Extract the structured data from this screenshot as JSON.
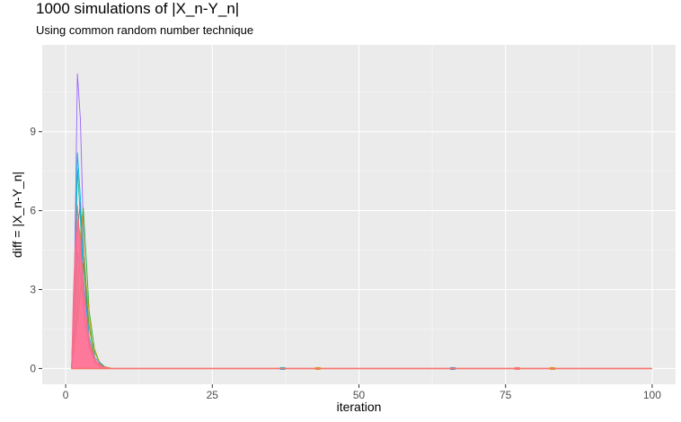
{
  "chart_data": {
    "type": "line",
    "title": "1000 simulations of |X_n-Y_n|",
    "subtitle": "Using common random number technique",
    "xlabel": "iteration",
    "ylabel": "diff = |X_n-Y_n|",
    "xlim": [
      -4,
      104
    ],
    "ylim": [
      -0.6,
      12.3
    ],
    "x_ticks": [
      0,
      25,
      50,
      75,
      100
    ],
    "x_tick_labels": [
      "0",
      "25",
      "50",
      "75",
      "100"
    ],
    "y_ticks": [
      0,
      3,
      6,
      9
    ],
    "y_tick_labels": [
      "0",
      "3",
      "6",
      "9"
    ],
    "grid": true,
    "legend": "none",
    "series": [
      {
        "color": "#9966ff",
        "values": [
          [
            1,
            0
          ],
          [
            1.5,
            3.5
          ],
          [
            2,
            11.2
          ],
          [
            2.5,
            9.5
          ],
          [
            3,
            5.5
          ],
          [
            3.5,
            2.6
          ],
          [
            4,
            1.1
          ],
          [
            5,
            0.3
          ],
          [
            6,
            0.05
          ],
          [
            8,
            0
          ],
          [
            100,
            0
          ]
        ]
      },
      {
        "color": "#00b4e8",
        "values": [
          [
            1,
            0
          ],
          [
            1.5,
            3
          ],
          [
            2,
            8.2
          ],
          [
            2.5,
            6.5
          ],
          [
            3,
            3.5
          ],
          [
            4,
            1.2
          ],
          [
            5,
            0.3
          ],
          [
            7,
            0
          ],
          [
            100,
            0
          ]
        ]
      },
      {
        "color": "#00bfa5",
        "values": [
          [
            1,
            0
          ],
          [
            1.5,
            2.5
          ],
          [
            2,
            7.6
          ],
          [
            2.5,
            5.8
          ],
          [
            3,
            3
          ],
          [
            4,
            0.9
          ],
          [
            5,
            0.2
          ],
          [
            7,
            0
          ],
          [
            100,
            0
          ]
        ]
      },
      {
        "color": "#2ab34a",
        "values": [
          [
            1,
            0
          ],
          [
            2,
            2.2
          ],
          [
            2.5,
            5
          ],
          [
            3,
            6.1
          ],
          [
            3.5,
            4.2
          ],
          [
            4,
            2.2
          ],
          [
            5,
            0.6
          ],
          [
            6,
            0.1
          ],
          [
            8,
            0
          ],
          [
            100,
            0
          ]
        ]
      },
      {
        "color": "#cda000",
        "values": [
          [
            1,
            0
          ],
          [
            2,
            3
          ],
          [
            2.8,
            5.8
          ],
          [
            3.5,
            3.2
          ],
          [
            4.5,
            1
          ],
          [
            6,
            0.1
          ],
          [
            8,
            0
          ],
          [
            100,
            0
          ]
        ]
      },
      {
        "color": "#3d8fd9",
        "values": [
          [
            1,
            0
          ],
          [
            1.5,
            2
          ],
          [
            2,
            5.2
          ],
          [
            2.5,
            6.3
          ],
          [
            3,
            4.3
          ],
          [
            4,
            1.6
          ],
          [
            5,
            0.4
          ],
          [
            7,
            0
          ],
          [
            100,
            0
          ]
        ]
      },
      {
        "color": "#00a0d0",
        "values": [
          [
            1,
            0
          ],
          [
            1.5,
            1.6
          ],
          [
            2,
            4.4
          ],
          [
            2.6,
            3.4
          ],
          [
            3.5,
            1.4
          ],
          [
            5,
            0.2
          ],
          [
            7,
            0
          ],
          [
            100,
            0
          ]
        ]
      },
      {
        "color": "#6aa600",
        "values": [
          [
            1,
            0
          ],
          [
            2,
            1.8
          ],
          [
            3,
            4
          ],
          [
            4,
            1.6
          ],
          [
            5,
            0.3
          ],
          [
            7,
            0
          ],
          [
            100,
            0
          ]
        ]
      },
      {
        "color": "#f8766d",
        "values": [
          [
            1,
            0
          ],
          [
            1.5,
            2.2
          ],
          [
            2,
            6.2
          ],
          [
            2.5,
            4.6
          ],
          [
            3,
            2.4
          ],
          [
            4,
            0.8
          ],
          [
            5,
            0.2
          ],
          [
            7,
            0
          ],
          [
            100,
            0
          ]
        ]
      }
    ],
    "fill_band": {
      "color": "#ff6c91",
      "values": [
        [
          1,
          0
        ],
        [
          1.3,
          2.8
        ],
        [
          1.6,
          4.6
        ],
        [
          2,
          5.7
        ],
        [
          2.4,
          5.2
        ],
        [
          3,
          3.4
        ],
        [
          3.5,
          2
        ],
        [
          4,
          1.1
        ],
        [
          5,
          0.35
        ],
        [
          6,
          0.1
        ],
        [
          7,
          0.03
        ],
        [
          8,
          0
        ],
        [
          100,
          0
        ]
      ]
    },
    "markers": [
      {
        "x": 37,
        "color": "#00b4e8"
      },
      {
        "x": 43,
        "color": "#cda000"
      },
      {
        "x": 66,
        "color": "#3d8fd9"
      },
      {
        "x": 77,
        "color": "#f8766d"
      },
      {
        "x": 83,
        "color": "#cda000"
      }
    ]
  }
}
